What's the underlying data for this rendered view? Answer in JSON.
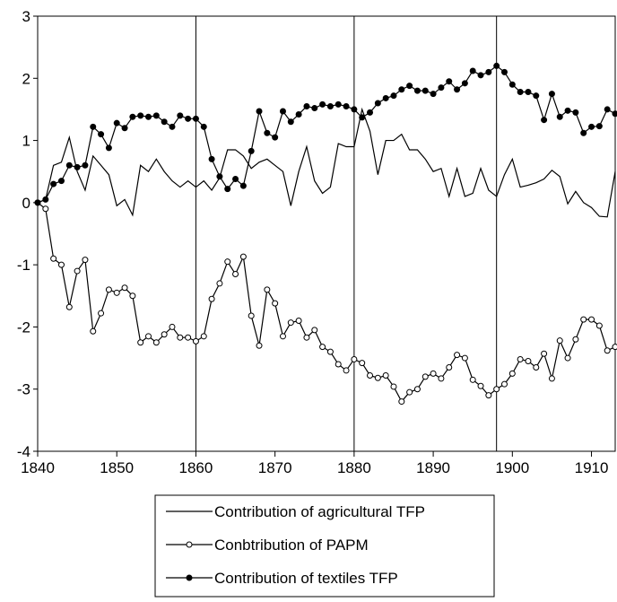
{
  "chart_data": {
    "type": "line",
    "x": [
      1840,
      1841,
      1842,
      1843,
      1844,
      1845,
      1846,
      1847,
      1848,
      1849,
      1850,
      1851,
      1852,
      1853,
      1854,
      1855,
      1856,
      1857,
      1858,
      1859,
      1860,
      1861,
      1862,
      1863,
      1864,
      1865,
      1866,
      1867,
      1868,
      1869,
      1870,
      1871,
      1872,
      1873,
      1874,
      1875,
      1876,
      1877,
      1878,
      1879,
      1880,
      1881,
      1882,
      1883,
      1884,
      1885,
      1886,
      1887,
      1888,
      1889,
      1890,
      1891,
      1892,
      1893,
      1894,
      1895,
      1896,
      1897,
      1898,
      1899,
      1900,
      1901,
      1902,
      1903,
      1904,
      1905,
      1906,
      1907,
      1908,
      1909,
      1910,
      1911,
      1912,
      1913
    ],
    "xlim": [
      1840,
      1913
    ],
    "xticks": [
      1840,
      1850,
      1860,
      1870,
      1880,
      1890,
      1900,
      1910
    ],
    "ylim": [
      -4,
      3
    ],
    "yticks": [
      -4,
      -3,
      -2,
      -1,
      0,
      1,
      2,
      3
    ],
    "vlines": [
      1860,
      1880,
      1898
    ],
    "series": [
      {
        "name": "Contribution of agricultural TFP",
        "color": "#000000",
        "marker": "none",
        "values": [
          0.0,
          0.05,
          0.6,
          0.65,
          1.05,
          0.5,
          0.2,
          0.75,
          0.6,
          0.45,
          -0.05,
          0.05,
          -0.2,
          0.6,
          0.5,
          0.7,
          0.5,
          0.35,
          0.25,
          0.35,
          0.25,
          0.35,
          0.2,
          0.4,
          0.85,
          0.85,
          0.75,
          0.55,
          0.65,
          0.7,
          0.6,
          0.5,
          -0.05,
          0.5,
          0.9,
          0.35,
          0.15,
          0.25,
          0.95,
          0.9,
          0.9,
          1.5,
          1.15,
          0.45,
          1.0,
          1.0,
          1.1,
          0.85,
          0.85,
          0.7,
          0.5,
          0.55,
          0.1,
          0.55,
          0.1,
          0.15,
          0.55,
          0.2,
          0.1,
          0.45,
          0.7,
          0.25,
          0.28,
          0.32,
          0.38,
          0.52,
          0.42,
          -0.02,
          0.18,
          0.0,
          -0.08,
          -0.22,
          -0.23,
          0.5
        ]
      },
      {
        "name": "Conbtribution of PAPM",
        "color": "#000000",
        "marker": "circle-open",
        "values": [
          0.0,
          -0.1,
          -0.9,
          -1.0,
          -1.68,
          -1.1,
          -0.92,
          -2.07,
          -1.78,
          -1.4,
          -1.45,
          -1.37,
          -1.5,
          -2.25,
          -2.15,
          -2.25,
          -2.12,
          -2.0,
          -2.17,
          -2.17,
          -2.23,
          -2.15,
          -1.55,
          -1.3,
          -0.95,
          -1.15,
          -0.87,
          -1.82,
          -2.3,
          -1.4,
          -1.62,
          -2.15,
          -1.93,
          -1.9,
          -2.17,
          -2.05,
          -2.32,
          -2.4,
          -2.6,
          -2.7,
          -2.52,
          -2.58,
          -2.78,
          -2.82,
          -2.78,
          -2.96,
          -3.2,
          -3.05,
          -3.0,
          -2.8,
          -2.75,
          -2.83,
          -2.65,
          -2.45,
          -2.5,
          -2.85,
          -2.95,
          -3.1,
          -3.0,
          -2.92,
          -2.75,
          -2.52,
          -2.55,
          -2.65,
          -2.43,
          -2.83,
          -2.22,
          -2.5,
          -2.2,
          -1.88,
          -1.88,
          -1.98,
          -2.38,
          -2.32
        ]
      },
      {
        "name": "Contribution of textiles TFP",
        "color": "#000000",
        "marker": "circle-filled",
        "values": [
          0.0,
          0.05,
          0.3,
          0.35,
          0.6,
          0.57,
          0.6,
          1.22,
          1.1,
          0.88,
          1.28,
          1.2,
          1.38,
          1.4,
          1.38,
          1.4,
          1.3,
          1.22,
          1.4,
          1.35,
          1.35,
          1.22,
          0.7,
          0.42,
          0.22,
          0.38,
          0.27,
          0.83,
          1.47,
          1.12,
          1.05,
          1.47,
          1.3,
          1.42,
          1.55,
          1.52,
          1.58,
          1.55,
          1.58,
          1.55,
          1.5,
          1.37,
          1.45,
          1.6,
          1.68,
          1.72,
          1.82,
          1.88,
          1.8,
          1.8,
          1.75,
          1.85,
          1.95,
          1.82,
          1.92,
          2.12,
          2.05,
          2.1,
          2.2,
          2.1,
          1.9,
          1.78,
          1.78,
          1.72,
          1.33,
          1.75,
          1.38,
          1.48,
          1.45,
          1.12,
          1.22,
          1.23,
          1.5,
          1.43
        ]
      }
    ]
  }
}
